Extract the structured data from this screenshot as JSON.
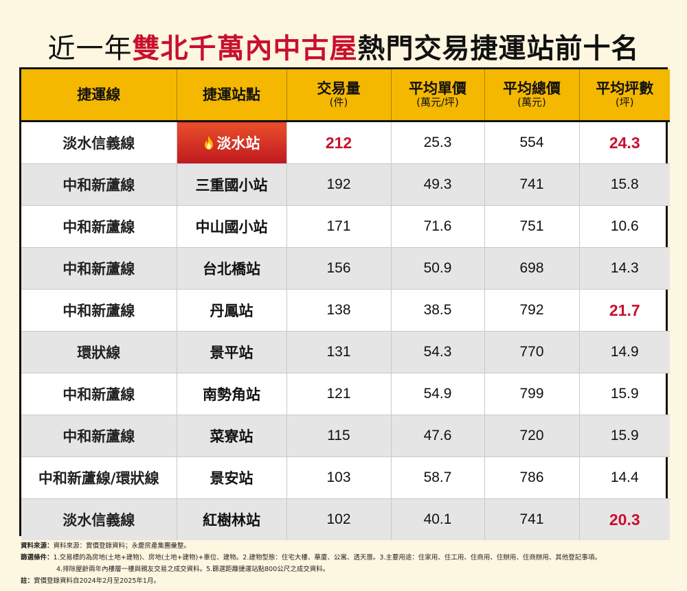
{
  "title": {
    "prefix": "近一年",
    "highlight": "雙北千萬內中古屋",
    "suffix": "熱門交易捷運站前十名"
  },
  "columns": [
    {
      "label": "捷運線",
      "unit": ""
    },
    {
      "label": "捷運站點",
      "unit": ""
    },
    {
      "label": "交易量",
      "unit": "(件)"
    },
    {
      "label": "平均單價",
      "unit": "(萬元/坪)"
    },
    {
      "label": "平均總價",
      "unit": "(萬元)"
    },
    {
      "label": "平均坪數",
      "unit": "(坪)"
    }
  ],
  "rows": [
    {
      "line": "淡水信義線",
      "station": "淡水站",
      "volume": "212",
      "unit_price": "25.3",
      "total_price": "554",
      "area": "24.3"
    },
    {
      "line": "中和新蘆線",
      "station": "三重國小站",
      "volume": "192",
      "unit_price": "49.3",
      "total_price": "741",
      "area": "15.8"
    },
    {
      "line": "中和新蘆線",
      "station": "中山國小站",
      "volume": "171",
      "unit_price": "71.6",
      "total_price": "751",
      "area": "10.6"
    },
    {
      "line": "中和新蘆線",
      "station": "台北橋站",
      "volume": "156",
      "unit_price": "50.9",
      "total_price": "698",
      "area": "14.3"
    },
    {
      "line": "中和新蘆線",
      "station": "丹鳳站",
      "volume": "138",
      "unit_price": "38.5",
      "total_price": "792",
      "area": "21.7"
    },
    {
      "line": "環狀線",
      "station": "景平站",
      "volume": "131",
      "unit_price": "54.3",
      "total_price": "770",
      "area": "14.9"
    },
    {
      "line": "中和新蘆線",
      "station": "南勢角站",
      "volume": "121",
      "unit_price": "54.9",
      "total_price": "799",
      "area": "15.9"
    },
    {
      "line": "中和新蘆線",
      "station": "菜寮站",
      "volume": "115",
      "unit_price": "47.6",
      "total_price": "720",
      "area": "15.9"
    },
    {
      "line": "中和新蘆線/環狀線",
      "station": "景安站",
      "volume": "103",
      "unit_price": "58.7",
      "total_price": "786",
      "area": "14.4"
    },
    {
      "line": "淡水信義線",
      "station": "紅樹林站",
      "volume": "102",
      "unit_price": "40.1",
      "total_price": "741",
      "area": "20.3"
    }
  ],
  "chart_data": {
    "type": "table",
    "title": "近一年雙北千萬內中古屋熱門交易捷運站前十名",
    "columns": [
      "捷運線",
      "捷運站點",
      "交易量(件)",
      "平均單價(萬元/坪)",
      "平均總價(萬元)",
      "平均坪數(坪)"
    ],
    "rows": [
      [
        "淡水信義線",
        "淡水站",
        212,
        25.3,
        554,
        24.3
      ],
      [
        "中和新蘆線",
        "三重國小站",
        192,
        49.3,
        741,
        15.8
      ],
      [
        "中和新蘆線",
        "中山國小站",
        171,
        71.6,
        751,
        10.6
      ],
      [
        "中和新蘆線",
        "台北橋站",
        156,
        50.9,
        698,
        14.3
      ],
      [
        "中和新蘆線",
        "丹鳳站",
        138,
        38.5,
        792,
        21.7
      ],
      [
        "環狀線",
        "景平站",
        131,
        54.3,
        770,
        14.9
      ],
      [
        "中和新蘆線",
        "南勢角站",
        121,
        54.9,
        799,
        15.9
      ],
      [
        "中和新蘆線",
        "菜寮站",
        115,
        47.6,
        720,
        15.9
      ],
      [
        "中和新蘆線/環狀線",
        "景安站",
        103,
        58.7,
        786,
        14.4
      ],
      [
        "淡水信義線",
        "紅樹林站",
        102,
        40.1,
        741,
        20.3
      ]
    ],
    "highlight_color": "#c8102e",
    "header_color": "#f5b800"
  },
  "notes": {
    "source_label": "資料來源：",
    "source_text": "資料來源：實價登錄資料；永慶房產集團彙整。",
    "filter_label": "篩選條件：",
    "filter_text_1": "1.交易標的為房地(土地+建物)、房地(土地+建物)+車位、建物。2.建物型態：住宅大樓、華廈、公寓、透天厝。3.主要用途：住家用、住工用、住商用、住辦用、住商辦用、其他登記事項。",
    "filter_text_2": "4.排除屋齡兩年內樓層一樓與親友交易之成交資料。5.篩選距離捷運站點800公尺之成交資料。",
    "note_label": "註：",
    "note_text": "實價登錄資料自2024年2月至2025年1月。"
  }
}
